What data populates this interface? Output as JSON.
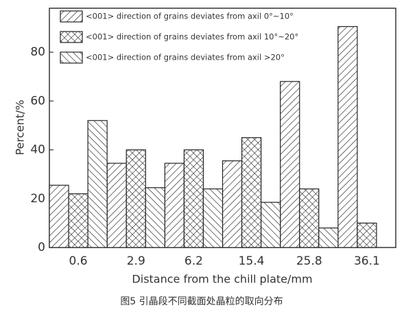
{
  "chart_data": {
    "type": "bar",
    "caption": "图5 引晶段不同截面处晶粒的取向分布",
    "x_label": "Distance from the chill plate/mm",
    "y_label": "Percent/%",
    "categories": [
      "0.6",
      "2.9",
      "6.2",
      "15.4",
      "25.8",
      "36.1"
    ],
    "series": [
      {
        "name": "<001> direction of grains deviates from axil 0°~10°",
        "color": "#222222",
        "hatch": "/",
        "values": [
          25.5,
          34.5,
          34.5,
          35.5,
          68,
          90.5
        ]
      },
      {
        "name": "<001> direction of grains deviates from axil 10°~20°",
        "color": "#222222",
        "hatch": "x",
        "values": [
          22,
          40,
          40,
          45,
          24,
          10
        ]
      },
      {
        "name": "<001> direction of grains deviates from axil >20°",
        "color": "#222222",
        "hatch": "\\",
        "values": [
          52,
          24.5,
          24,
          18.5,
          8,
          null
        ]
      }
    ],
    "ylim": [
      0,
      98
    ],
    "yticks": [
      0,
      20,
      40,
      60,
      80
    ],
    "grid": false,
    "legend": "upper left"
  }
}
